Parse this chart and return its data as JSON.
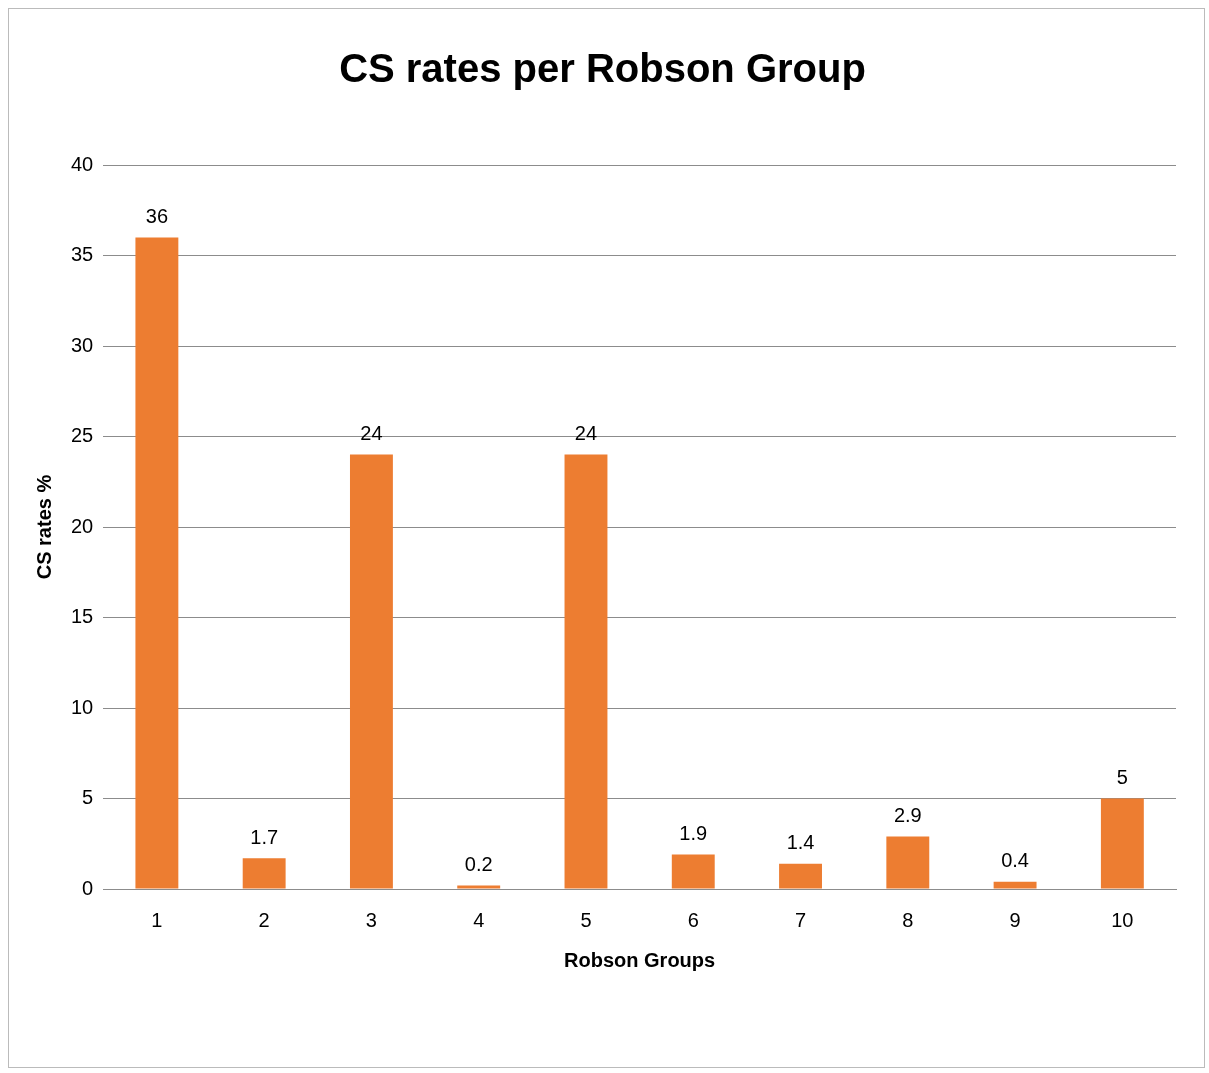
{
  "chart_data": {
    "type": "bar",
    "title": "CS rates per Robson Group",
    "xlabel": "Robson Groups",
    "ylabel": "CS rates %",
    "categories": [
      "1",
      "2",
      "3",
      "4",
      "5",
      "6",
      "7",
      "8",
      "9",
      "10"
    ],
    "values": [
      36,
      1.7,
      24,
      0.2,
      24,
      1.9,
      1.4,
      2.9,
      0.4,
      5
    ],
    "color": "#ed7d31",
    "ylim": [
      0,
      40
    ],
    "yticks": [
      0,
      5,
      10,
      15,
      20,
      25,
      30,
      35,
      40
    ],
    "grid": "y",
    "legend": false,
    "data_labels": true
  }
}
